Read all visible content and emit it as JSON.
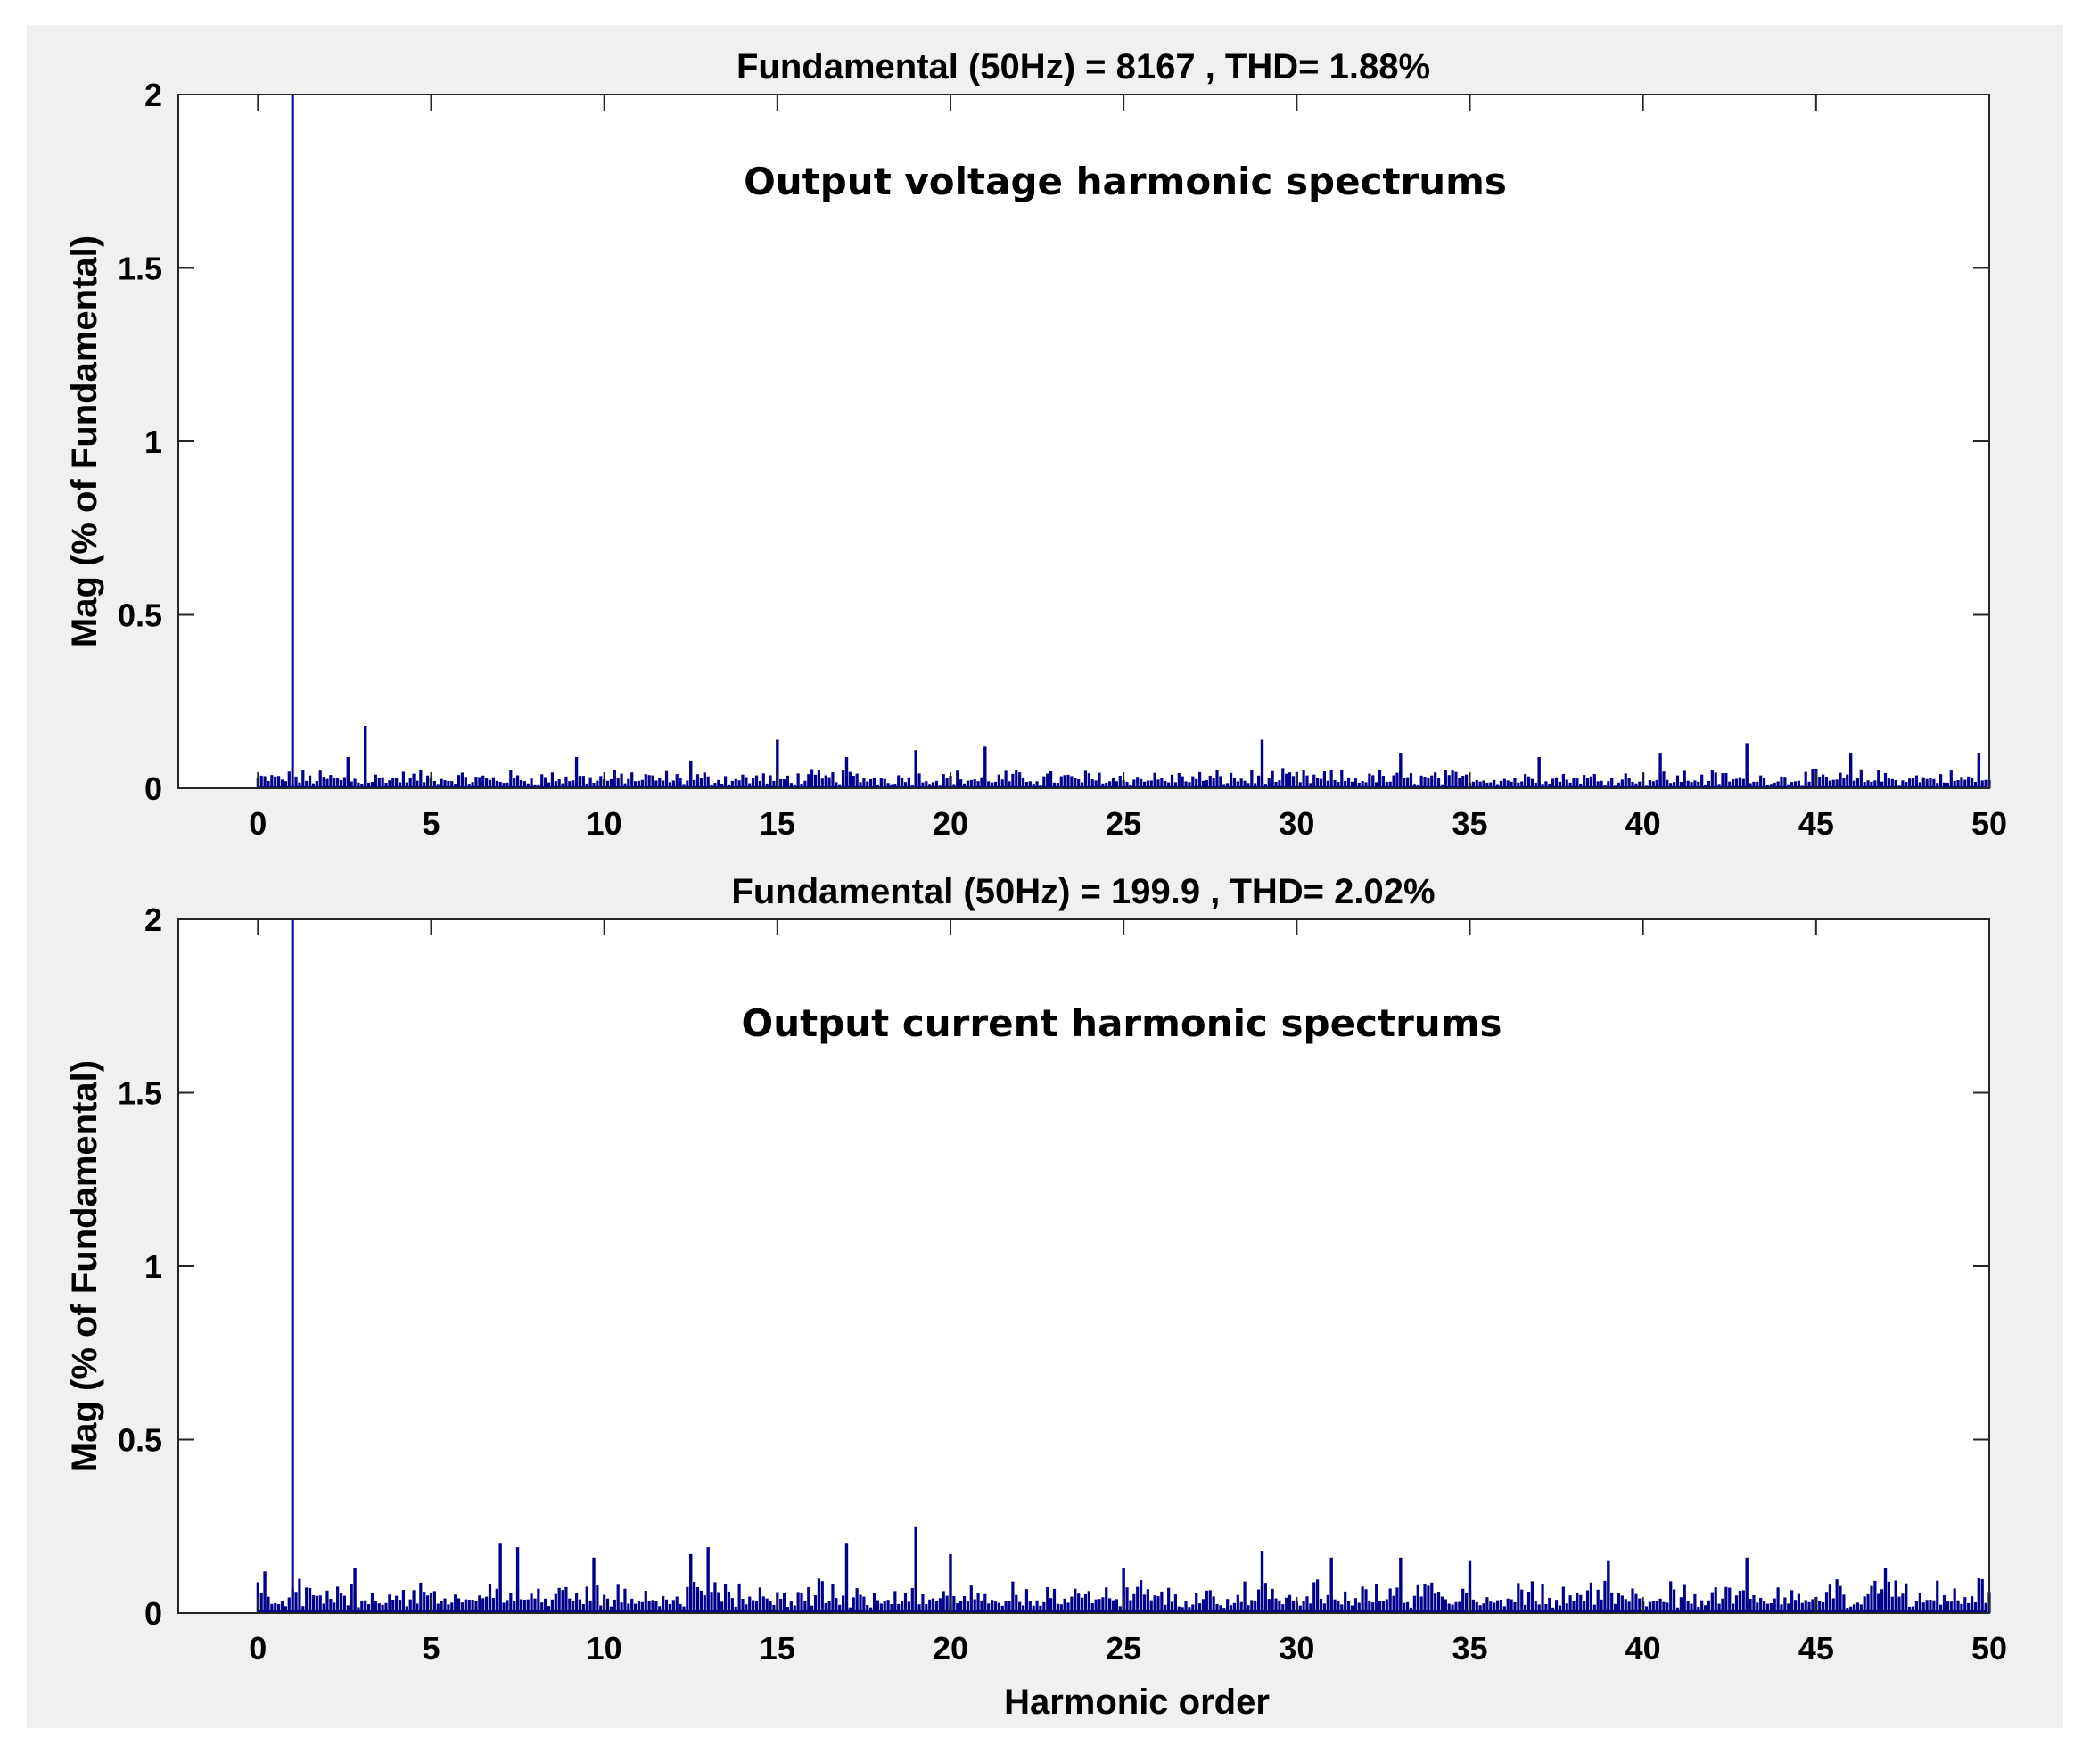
{
  "colors": {
    "figure_bg": "#f0f0f0",
    "axes_bg": "#ffffff",
    "series": "#00008b",
    "axis": "#262626"
  },
  "chart_data": [
    {
      "type": "bar",
      "title": "Fundamental (50Hz) = 8167 , THD= 1.88%",
      "annotation": "Output voltage harmonic spectrums",
      "xlabel": "",
      "ylabel": "Mag (% of Fundamental)",
      "xlim": [
        -2.3,
        50
      ],
      "ylim": [
        0,
        2
      ],
      "xticks": [
        "0",
        "5",
        "10",
        "15",
        "20",
        "25",
        "30",
        "35",
        "40",
        "45",
        "50"
      ],
      "yticks": [
        "0",
        "0.5",
        "1",
        "1.5",
        "2"
      ],
      "grid": false,
      "fundamental_order": 1,
      "bar_step": 0.1,
      "noise_floor": 0.035,
      "peaks": [
        {
          "x": 1,
          "y": 2
        },
        {
          "x": 2.6,
          "y": 0.09
        },
        {
          "x": 3.1,
          "y": 0.18
        },
        {
          "x": 9.2,
          "y": 0.09
        },
        {
          "x": 12.5,
          "y": 0.08
        },
        {
          "x": 15,
          "y": 0.14
        },
        {
          "x": 17,
          "y": 0.09
        },
        {
          "x": 19,
          "y": 0.11
        },
        {
          "x": 21,
          "y": 0.12
        },
        {
          "x": 29,
          "y": 0.14
        },
        {
          "x": 33,
          "y": 0.1
        },
        {
          "x": 37,
          "y": 0.09
        },
        {
          "x": 40.5,
          "y": 0.1
        },
        {
          "x": 43,
          "y": 0.13
        },
        {
          "x": 46,
          "y": 0.1
        },
        {
          "x": 49.7,
          "y": 0.1
        }
      ]
    },
    {
      "type": "bar",
      "title": "Fundamental (50Hz) = 199.9 , THD= 2.02%",
      "annotation": "Output current harmonic spectrums",
      "xlabel": "Harmonic order",
      "ylabel": "Mag (% of Fundamental)",
      "xlim": [
        -2.3,
        50
      ],
      "ylim": [
        0,
        2
      ],
      "xticks": [
        "0",
        "5",
        "10",
        "15",
        "20",
        "25",
        "30",
        "35",
        "40",
        "45",
        "50"
      ],
      "yticks": [
        "0",
        "0.5",
        "1",
        "1.5",
        "2"
      ],
      "grid": false,
      "fundamental_order": 1,
      "bar_step": 0.1,
      "noise_floor": 0.06,
      "peaks": [
        {
          "x": 1,
          "y": 2
        },
        {
          "x": 0.2,
          "y": 0.12
        },
        {
          "x": 2.8,
          "y": 0.13
        },
        {
          "x": 7,
          "y": 0.2
        },
        {
          "x": 7.5,
          "y": 0.19
        },
        {
          "x": 9.7,
          "y": 0.16
        },
        {
          "x": 12.5,
          "y": 0.17
        },
        {
          "x": 13,
          "y": 0.19
        },
        {
          "x": 17,
          "y": 0.2
        },
        {
          "x": 19,
          "y": 0.25
        },
        {
          "x": 20,
          "y": 0.17
        },
        {
          "x": 25,
          "y": 0.13
        },
        {
          "x": 29,
          "y": 0.18
        },
        {
          "x": 31,
          "y": 0.16
        },
        {
          "x": 33,
          "y": 0.16
        },
        {
          "x": 35,
          "y": 0.15
        },
        {
          "x": 39,
          "y": 0.15
        },
        {
          "x": 43,
          "y": 0.16
        },
        {
          "x": 47,
          "y": 0.13
        },
        {
          "x": 49.7,
          "y": 0.1
        }
      ]
    }
  ]
}
